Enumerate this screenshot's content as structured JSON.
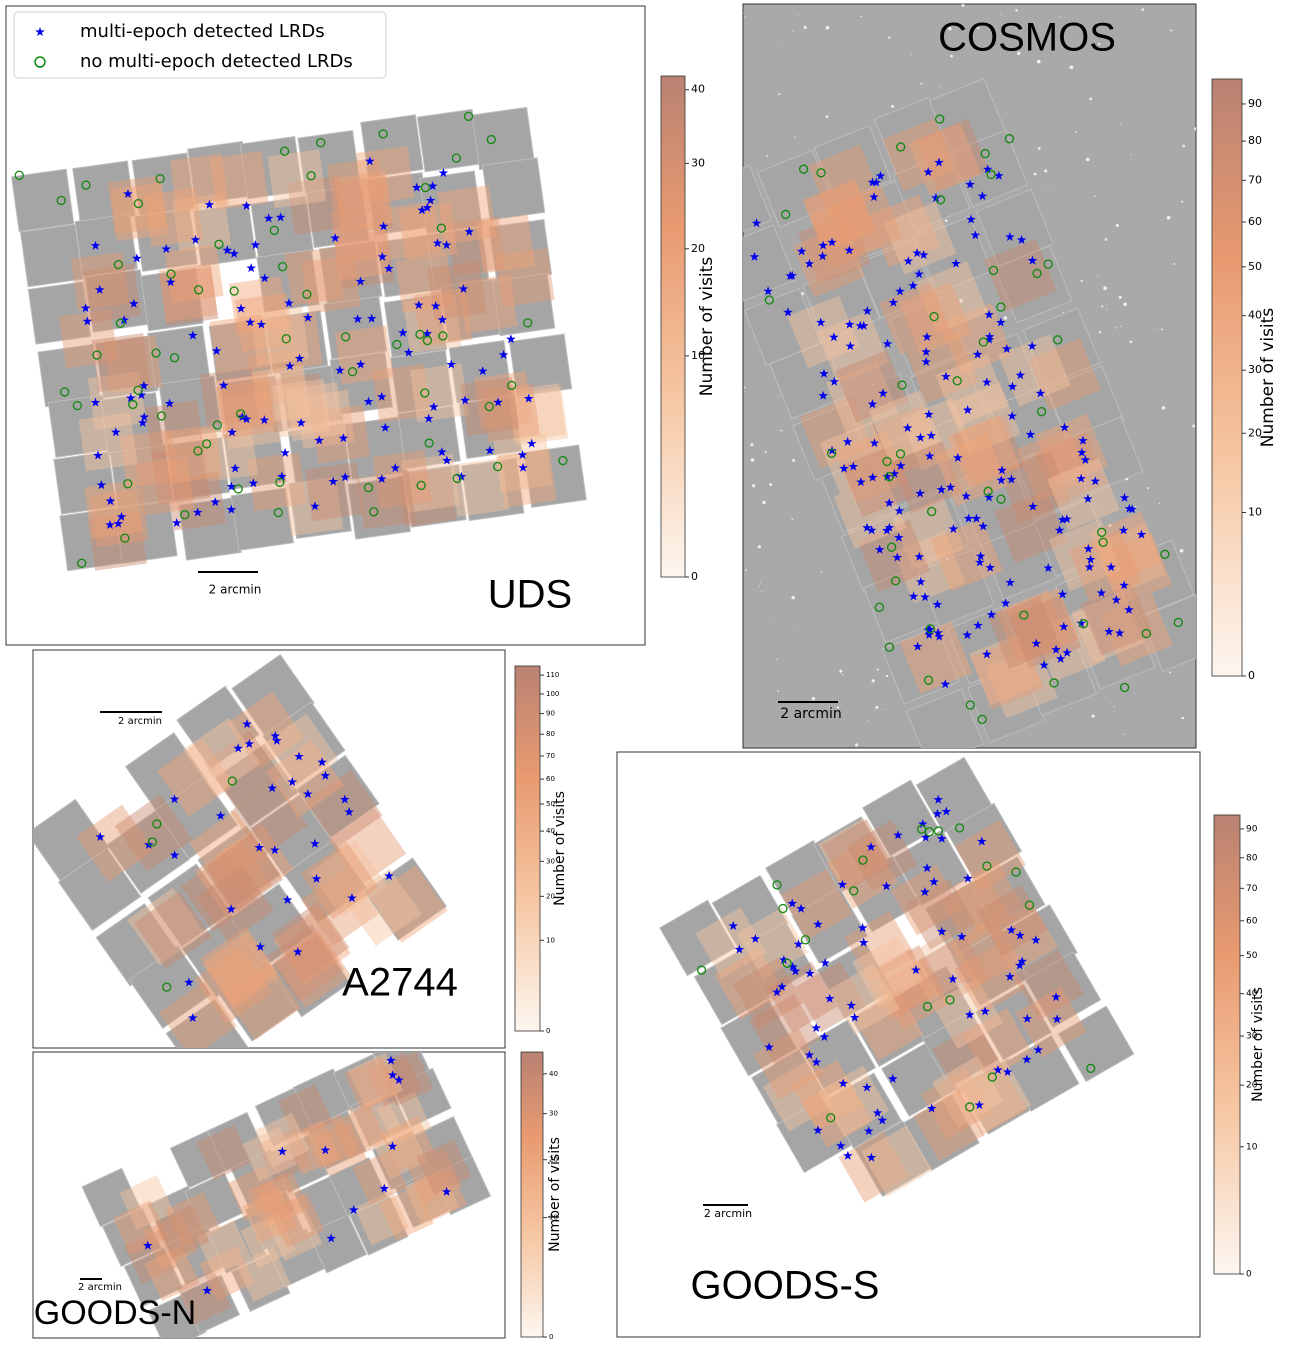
{
  "legend": {
    "entries": [
      "multi-epoch detected LRDs",
      "no multi-epoch detected LRDs"
    ],
    "star_color": "#0000ee",
    "circle_color": "#118811"
  },
  "panels": [
    {
      "name": "UDS",
      "scale_bar": "2 arcmin",
      "colorbar": {
        "label": "Number of visits",
        "lim": [
          0,
          42
        ],
        "ticks": [
          0,
          10,
          20,
          30,
          40
        ]
      }
    },
    {
      "name": "COSMOS",
      "scale_bar": "2 arcmin",
      "colorbar": {
        "label": "Number of visits",
        "lim": [
          0,
          97
        ],
        "ticks": [
          0,
          10,
          20,
          30,
          40,
          50,
          60,
          70,
          80,
          90
        ]
      }
    },
    {
      "name": "A2744",
      "scale_bar": "2 arcmin",
      "colorbar": {
        "label": "Number of visits",
        "lim": [
          0,
          115
        ],
        "ticks": [
          0,
          10,
          20,
          30,
          40,
          50,
          60,
          70,
          80,
          90,
          100,
          110
        ]
      }
    },
    {
      "name": "GOODS-N",
      "scale_bar": "2 arcmin",
      "colorbar": {
        "label": "Number of visits",
        "lim": [
          0,
          46
        ],
        "ticks": [
          0,
          10,
          20,
          30,
          40
        ]
      }
    },
    {
      "name": "GOODS-S",
      "scale_bar": "2 arcmin",
      "colorbar": {
        "label": "Number of visits",
        "lim": [
          0,
          95
        ],
        "ticks": [
          0,
          10,
          20,
          30,
          40,
          50,
          60,
          70,
          80,
          90
        ]
      }
    }
  ]
}
